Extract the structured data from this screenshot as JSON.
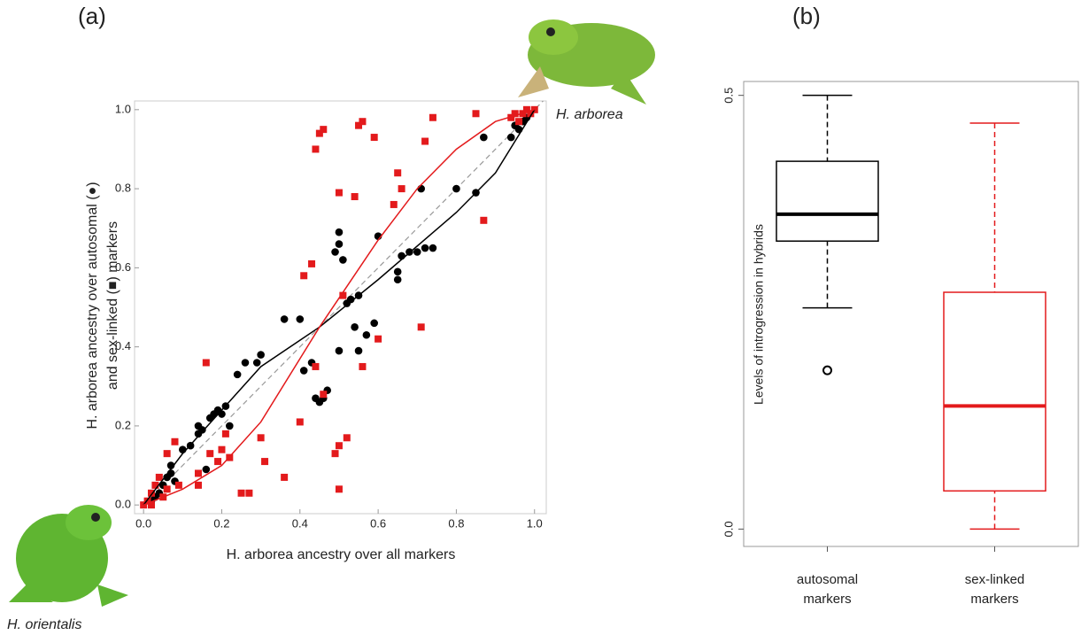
{
  "chart_data": [
    {
      "type": "scatter",
      "panel_label": "(a)",
      "xlabel": "H. arborea ancestry over all markers",
      "ylabel": [
        "H. arborea ancestry over autosomal (●)",
        "and sex-linked (■) markers"
      ],
      "annotations": [
        "H. arborea",
        "H. orientalis"
      ],
      "xlim": [
        -0.023,
        1.03
      ],
      "ylim": [
        -0.022,
        1.022
      ],
      "xticks": [
        {
          "value": 0,
          "label": "0.0"
        },
        {
          "value": 0.2,
          "label": "0.2"
        },
        {
          "value": 0.4,
          "label": "0.4"
        },
        {
          "value": 0.6,
          "label": "0.6"
        },
        {
          "value": 0.8,
          "label": "0.8"
        },
        {
          "value": 1,
          "label": "1.0"
        }
      ],
      "yticks": [
        {
          "value": 0,
          "label": "0.0"
        },
        {
          "value": 0.2,
          "label": "0.2"
        },
        {
          "value": 0.4,
          "label": "0.4"
        },
        {
          "value": 0.6,
          "label": "0.6"
        },
        {
          "value": 0.8,
          "label": "0.8"
        },
        {
          "value": 1,
          "label": "1.0"
        }
      ],
      "diagonal": true,
      "series": [
        {
          "marker": "circle",
          "color": "#000000",
          "x": [
            0.02,
            0.03,
            0.04,
            0.05,
            0.06,
            0.07,
            0.08,
            0.07,
            0.1,
            0.12,
            0.14,
            0.14,
            0.15,
            0.16,
            0.17,
            0.18,
            0.19,
            0.2,
            0.21,
            0.22,
            0.24,
            0.26,
            0.29,
            0.3,
            0.36,
            0.4,
            0.41,
            0.43,
            0.44,
            0.45,
            0.46,
            0.47,
            0.49,
            0.5,
            0.5,
            0.51,
            0.5,
            0.52,
            0.53,
            0.54,
            0.55,
            0.55,
            0.57,
            0.59,
            0.6,
            0.65,
            0.65,
            0.66,
            0.68,
            0.7,
            0.71,
            0.72,
            0.74,
            0.8,
            0.85,
            0.87,
            0.94,
            0.95,
            0.96,
            0.97,
            0.98
          ],
          "values": [
            0.01,
            0.02,
            0.03,
            0.05,
            0.07,
            0.08,
            0.06,
            0.1,
            0.14,
            0.15,
            0.18,
            0.2,
            0.19,
            0.09,
            0.22,
            0.23,
            0.24,
            0.23,
            0.25,
            0.2,
            0.33,
            0.36,
            0.36,
            0.38,
            0.47,
            0.47,
            0.34,
            0.36,
            0.27,
            0.26,
            0.27,
            0.29,
            0.64,
            0.69,
            0.66,
            0.62,
            0.39,
            0.51,
            0.52,
            0.45,
            0.39,
            0.53,
            0.43,
            0.46,
            0.68,
            0.57,
            0.59,
            0.63,
            0.64,
            0.64,
            0.8,
            0.65,
            0.65,
            0.8,
            0.79,
            0.93,
            0.93,
            0.96,
            0.95,
            0.97,
            0.98
          ]
        },
        {
          "marker": "square",
          "color": "#e31a1c",
          "x": [
            0,
            0.01,
            0.02,
            0.02,
            0.03,
            0.04,
            0.05,
            0.06,
            0.06,
            0.08,
            0.09,
            0.14,
            0.14,
            0.16,
            0.17,
            0.19,
            0.2,
            0.21,
            0.22,
            0.25,
            0.27,
            0.3,
            0.31,
            0.36,
            0.4,
            0.41,
            0.43,
            0.44,
            0.44,
            0.45,
            0.46,
            0.46,
            0.49,
            0.5,
            0.5,
            0.5,
            0.51,
            0.52,
            0.54,
            0.55,
            0.56,
            0.56,
            0.59,
            0.6,
            0.64,
            0.65,
            0.66,
            0.71,
            0.72,
            0.74,
            0.85,
            0.87,
            0.94,
            0.95,
            0.96,
            0.97,
            0.98,
            0.99,
            1
          ],
          "values": [
            0,
            0.01,
            0,
            0.03,
            0.05,
            0.07,
            0.02,
            0.13,
            0.04,
            0.16,
            0.05,
            0.05,
            0.08,
            0.36,
            0.13,
            0.11,
            0.14,
            0.18,
            0.12,
            0.03,
            0.03,
            0.17,
            0.11,
            0.07,
            0.21,
            0.58,
            0.61,
            0.35,
            0.9,
            0.94,
            0.95,
            0.28,
            0.13,
            0.04,
            0.15,
            0.79,
            0.53,
            0.17,
            0.78,
            0.96,
            0.35,
            0.97,
            0.93,
            0.42,
            0.76,
            0.84,
            0.8,
            0.45,
            0.92,
            0.98,
            0.99,
            0.72,
            0.98,
            0.99,
            0.97,
            0.99,
            1,
            0.99,
            1
          ]
        }
      ],
      "curves": [
        {
          "color": "#000000",
          "x": [
            0,
            0.1,
            0.2,
            0.3,
            0.45,
            0.6,
            0.8,
            0.9,
            1
          ],
          "values": [
            0,
            0.13,
            0.24,
            0.35,
            0.45,
            0.57,
            0.74,
            0.84,
            1
          ]
        },
        {
          "color": "#e31a1c",
          "x": [
            0,
            0.1,
            0.2,
            0.3,
            0.45,
            0.6,
            0.7,
            0.8,
            0.9,
            1
          ],
          "values": [
            0,
            0.04,
            0.1,
            0.21,
            0.45,
            0.67,
            0.8,
            0.9,
            0.97,
            1
          ]
        }
      ]
    },
    {
      "type": "box",
      "panel_label": "(b)",
      "ylabel": "Levels of introgression in hybrids",
      "categories": [
        [
          "autosomal",
          "markers"
        ],
        [
          "sex-linked",
          "markers"
        ]
      ],
      "ylim": [
        -0.02,
        0.516
      ],
      "yticks": [
        {
          "value": 0,
          "label": "0.0"
        },
        {
          "value": 0.5,
          "label": "0.5"
        }
      ],
      "boxes": [
        {
          "color": "#000000",
          "whislo": 0.255,
          "q1": 0.332,
          "med": 0.363,
          "q3": 0.424,
          "whishi": 0.5,
          "fliers": [
            0.183
          ]
        },
        {
          "color": "#e31a1c",
          "whislo": 0,
          "q1": 0.044,
          "med": 0.142,
          "q3": 0.273,
          "whishi": 0.468,
          "fliers": []
        }
      ]
    }
  ]
}
